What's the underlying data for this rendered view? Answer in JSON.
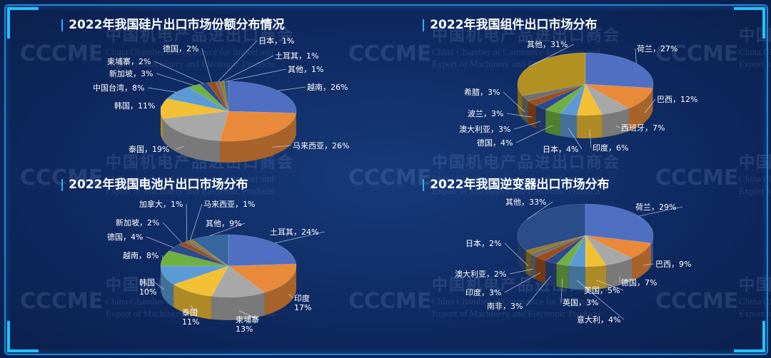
{
  "watermark": {
    "cn": "中国机电产品进出口商会",
    "en1": "China Chamber of Commerce for Import and",
    "en2": "Export of Machinery and Electronic Products",
    "logo": "CCCME"
  },
  "chart_data": [
    {
      "type": "pie",
      "title": "2022年我国硅片出口市场份额分布情况",
      "slices": [
        {
          "label": "越南",
          "value": 26,
          "display": "越南，26%",
          "color": "#4f6fc2"
        },
        {
          "label": "马来西亚",
          "value": 26,
          "display": "马来西亚，26%",
          "color": "#e88a3a"
        },
        {
          "label": "泰国",
          "value": 19,
          "display": "泰国，19%",
          "color": "#a8a8a8"
        },
        {
          "label": "韩国",
          "value": 11,
          "display": "韩国，11%",
          "color": "#f2c035"
        },
        {
          "label": "中国台湾",
          "value": 8,
          "display": "中国台湾，8%",
          "color": "#5b9bd5"
        },
        {
          "label": "新加坡",
          "value": 3,
          "display": "新加坡，3%",
          "color": "#6fb043"
        },
        {
          "label": "柬埔寨",
          "value": 2,
          "display": "柬埔寨，2%",
          "color": "#2c4a8c"
        },
        {
          "label": "德国",
          "value": 2,
          "display": "德国，2%",
          "color": "#9c4f1c"
        },
        {
          "label": "日本",
          "value": 1,
          "display": "日本，1%",
          "color": "#707070"
        },
        {
          "label": "土耳其",
          "value": 1,
          "display": "土耳其，1%",
          "color": "#997a22"
        },
        {
          "label": "其他",
          "value": 1,
          "display": "其他，1%",
          "color": "#35669e"
        }
      ]
    },
    {
      "type": "pie",
      "title": "2022年我国组件出口市场分布",
      "slices": [
        {
          "label": "荷兰",
          "value": 27,
          "display": "荷兰，27%",
          "color": "#4f6fc2"
        },
        {
          "label": "巴西",
          "value": 12,
          "display": "巴西，12%",
          "color": "#e88a3a"
        },
        {
          "label": "西班牙",
          "value": 7,
          "display": "西班牙，7%",
          "color": "#a8a8a8"
        },
        {
          "label": "印度",
          "value": 6,
          "display": "印度，6%",
          "color": "#f2c035"
        },
        {
          "label": "日本",
          "value": 4,
          "display": "日本，4%",
          "color": "#5b9bd5"
        },
        {
          "label": "德国",
          "value": 4,
          "display": "德国，4%",
          "color": "#6fb043"
        },
        {
          "label": "澳大利亚",
          "value": 3,
          "display": "澳大利亚，3%",
          "color": "#2c4a8c"
        },
        {
          "label": "波兰",
          "value": 3,
          "display": "波兰，3%",
          "color": "#9c4f1c"
        },
        {
          "label": "希腊",
          "value": 3,
          "display": "希腊，3%",
          "color": "#707070"
        },
        {
          "label": "其他",
          "value": 31,
          "display": "其他，31%",
          "color": "#b39022"
        }
      ]
    },
    {
      "type": "pie",
      "title": "2022年我国电池片出口市场分布",
      "slices": [
        {
          "label": "土耳其",
          "value": 24,
          "display": "土耳其，24%",
          "color": "#4f6fc2"
        },
        {
          "label": "印度",
          "value": 17,
          "display": "印度\n17%",
          "color": "#e88a3a"
        },
        {
          "label": "柬埔寨",
          "value": 13,
          "display": "柬埔寨\n13%",
          "color": "#a8a8a8"
        },
        {
          "label": "泰国",
          "value": 11,
          "display": "泰国\n11%",
          "color": "#f2c035"
        },
        {
          "label": "韩国",
          "value": 10,
          "display": "韩国\n10%",
          "color": "#5b9bd5"
        },
        {
          "label": "越南",
          "value": 8,
          "display": "越南，8%",
          "color": "#6fb043"
        },
        {
          "label": "德国",
          "value": 4,
          "display": "德国，4%",
          "color": "#2c4a8c"
        },
        {
          "label": "新加坡",
          "value": 2,
          "display": "新加坡，2%",
          "color": "#9c4f1c"
        },
        {
          "label": "加拿大",
          "value": 1,
          "display": "加拿大，1%",
          "color": "#707070"
        },
        {
          "label": "马来西亚",
          "value": 1,
          "display": "马来西亚，1%",
          "color": "#997a22"
        },
        {
          "label": "其他",
          "value": 9,
          "display": "其他，9%",
          "color": "#35669e"
        }
      ]
    },
    {
      "type": "pie",
      "title": "2022年我国逆变器出口市场分布",
      "slices": [
        {
          "label": "荷兰",
          "value": 29,
          "display": "荷兰，29%",
          "color": "#4f6fc2"
        },
        {
          "label": "巴西",
          "value": 9,
          "display": "巴西，9%",
          "color": "#e88a3a"
        },
        {
          "label": "德国",
          "value": 7,
          "display": "德国，7%",
          "color": "#a8a8a8"
        },
        {
          "label": "美国",
          "value": 5,
          "display": "美国，5%",
          "color": "#f2c035"
        },
        {
          "label": "意大利",
          "value": 4,
          "display": "意大利，4%",
          "color": "#5b9bd5"
        },
        {
          "label": "英国",
          "value": 3,
          "display": "英国，3%",
          "color": "#6fb043"
        },
        {
          "label": "南非",
          "value": 3,
          "display": "南非，3%",
          "color": "#2c4a8c"
        },
        {
          "label": "印度",
          "value": 3,
          "display": "印度，3%",
          "color": "#9c4f1c"
        },
        {
          "label": "澳大利亚",
          "value": 2,
          "display": "澳大利亚，2%",
          "color": "#707070"
        },
        {
          "label": "日本",
          "value": 2,
          "display": "日本，2%",
          "color": "#997a22"
        },
        {
          "label": "其他",
          "value": 33,
          "display": "其他，33%",
          "color": "#2a4d8a"
        }
      ]
    }
  ]
}
